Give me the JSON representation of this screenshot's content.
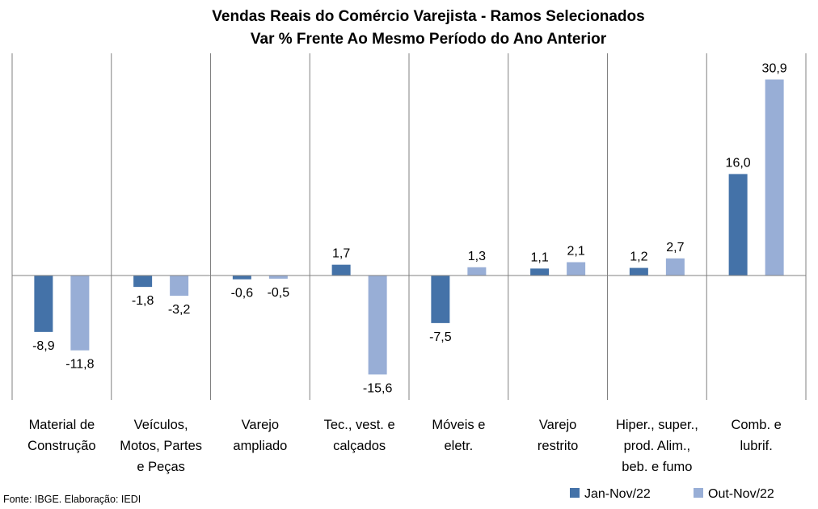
{
  "chart_data": {
    "type": "bar",
    "title": "Vendas Reais do Comércio Varejista - Ramos Selecionados",
    "subtitle": "Var % Frente Ao Mesmo Período do Ano Anterior",
    "categories": [
      [
        "Material de",
        "Construção"
      ],
      [
        "Veículos,",
        "Motos, Partes",
        "e Peças"
      ],
      [
        "Varejo",
        "ampliado"
      ],
      [
        "Tec., vest. e",
        "calçados"
      ],
      [
        "Móveis e",
        "eletr."
      ],
      [
        "Varejo",
        "restrito"
      ],
      [
        "Hiper., super.,",
        "prod. Alim.,",
        "beb. e fumo"
      ],
      [
        "Comb. e",
        "lubrif."
      ]
    ],
    "series": [
      {
        "name": "Jan-Nov/22",
        "color": "#4472a8",
        "values": [
          -8.9,
          -1.8,
          -0.6,
          1.7,
          -7.5,
          1.1,
          1.2,
          16.0
        ],
        "labels": [
          "-8,9",
          "-1,8",
          "-0,6",
          "1,7",
          "-7,5",
          "1,1",
          "1,2",
          "16,0"
        ]
      },
      {
        "name": "Out-Nov/22",
        "color": "#98aed6",
        "values": [
          -11.8,
          -3.2,
          -0.5,
          -15.6,
          1.3,
          2.1,
          2.7,
          30.9
        ],
        "labels": [
          "-11,8",
          "-3,2",
          "-0,5",
          "-15,6",
          "1,3",
          "2,1",
          "2,7",
          "30,9"
        ]
      }
    ],
    "ylim": [
      -20,
      36
    ],
    "grid": false,
    "legend_position": "bottom-right",
    "source": "Fonte: IBGE. Elaboração: IEDI"
  }
}
